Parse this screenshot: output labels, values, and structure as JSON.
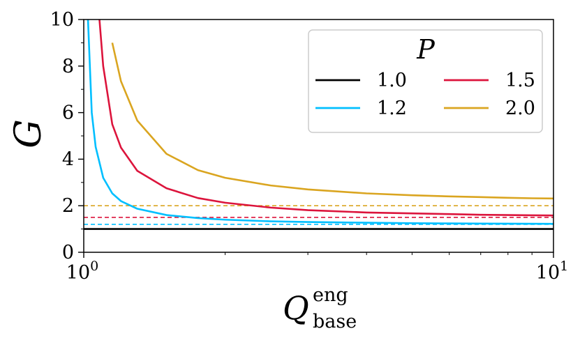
{
  "chart_data": {
    "type": "line",
    "title": "",
    "xlabel": "Q",
    "xlabel_sup": "eng",
    "xlabel_sub": "base",
    "ylabel": "G",
    "xscale": "log",
    "xlim": [
      1,
      10
    ],
    "ylim": [
      0,
      10
    ],
    "x_ticks": [
      {
        "value": 1,
        "base": "10",
        "exp": "0"
      },
      {
        "value": 10,
        "base": "10",
        "exp": "1"
      }
    ],
    "y_ticks": [
      0,
      2,
      4,
      6,
      8,
      10
    ],
    "y_tick_labels": [
      "0",
      "2",
      "4",
      "6",
      "8",
      "10"
    ],
    "legend": {
      "title": "P",
      "position": "top-right",
      "entries": [
        {
          "label": "1.0",
          "color": "#000000"
        },
        {
          "label": "1.5",
          "color": "#dc143c"
        },
        {
          "label": "1.2",
          "color": "#00bfff"
        },
        {
          "label": "2.0",
          "color": "#daa520"
        }
      ]
    },
    "series": [
      {
        "name": "1.0",
        "P": 1.0,
        "color": "#000000",
        "x": [
          1,
          10
        ],
        "values": [
          1.0,
          1.0
        ]
      },
      {
        "name": "1.2",
        "P": 1.2,
        "color": "#00bfff",
        "x": [
          1.02,
          1.04,
          1.06,
          1.1,
          1.15,
          1.2,
          1.3,
          1.5,
          1.75,
          2,
          2.5,
          3,
          4,
          5,
          6,
          7,
          8,
          9,
          10
        ],
        "values": [
          10.2,
          6.0,
          4.53,
          3.2,
          2.53,
          2.2,
          1.87,
          1.6,
          1.47,
          1.4,
          1.33,
          1.3,
          1.27,
          1.25,
          1.24,
          1.233,
          1.229,
          1.225,
          1.222
        ]
      },
      {
        "name": "1.5",
        "P": 1.5,
        "color": "#dc143c",
        "x": [
          1.08,
          1.1,
          1.15,
          1.2,
          1.3,
          1.5,
          1.75,
          2,
          2.5,
          3,
          4,
          5,
          6,
          7,
          8,
          9,
          10
        ],
        "values": [
          10.0,
          8.0,
          5.5,
          4.5,
          3.5,
          2.75,
          2.33,
          2.13,
          1.92,
          1.81,
          1.71,
          1.67,
          1.64,
          1.61,
          1.6,
          1.59,
          1.58
        ]
      },
      {
        "name": "2.0",
        "P": 2.0,
        "color": "#daa520",
        "x": [
          1.15,
          1.2,
          1.3,
          1.5,
          1.75,
          2,
          2.5,
          3,
          4,
          5,
          6,
          7,
          8,
          9,
          10
        ],
        "values": [
          9.0,
          7.35,
          5.66,
          4.23,
          3.53,
          3.2,
          2.87,
          2.7,
          2.53,
          2.45,
          2.4,
          2.37,
          2.34,
          2.32,
          2.31
        ]
      }
    ],
    "asymptotes": [
      {
        "name": "1.2",
        "y": 1.2,
        "color": "#00bfff",
        "style": "dashed"
      },
      {
        "name": "1.5",
        "y": 1.5,
        "color": "#dc143c",
        "style": "dashed"
      },
      {
        "name": "2.0",
        "y": 2.0,
        "color": "#daa520",
        "style": "dashed"
      }
    ]
  }
}
